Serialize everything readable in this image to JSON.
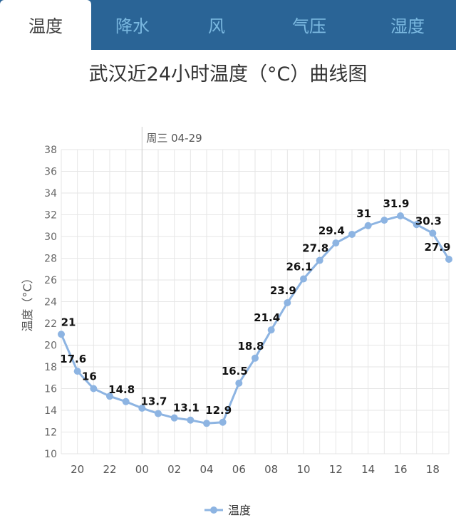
{
  "tabs": [
    {
      "label": "温度",
      "active": true
    },
    {
      "label": "降水"
    },
    {
      "label": "风"
    },
    {
      "label": "气压"
    },
    {
      "label": "湿度"
    }
  ],
  "chart_data": {
    "type": "line",
    "title": "武汉近24小时温度（°C）曲线图",
    "ylabel": "温度（°C）",
    "ylim": [
      10,
      38
    ],
    "yticks": [
      "10",
      "12",
      "14",
      "16",
      "18",
      "20",
      "22",
      "24",
      "26",
      "28",
      "30",
      "32",
      "34",
      "36",
      "38"
    ],
    "xticks": [
      "20",
      "22",
      "00",
      "02",
      "04",
      "06",
      "08",
      "10",
      "12",
      "14",
      "16",
      "18"
    ],
    "date_marker": {
      "at": "00",
      "label": "周三 04-29"
    },
    "x": [
      "19",
      "20",
      "21",
      "22",
      "23",
      "00",
      "01",
      "02",
      "03",
      "04",
      "05",
      "06",
      "07",
      "08",
      "09",
      "10",
      "11",
      "12",
      "13",
      "14",
      "15",
      "16",
      "17",
      "18",
      "19"
    ],
    "series": [
      {
        "name": "温度",
        "color": "#8db4e2",
        "values": [
          21,
          17.6,
          16,
          15.3,
          14.8,
          14.2,
          13.7,
          13.3,
          13.1,
          12.8,
          12.9,
          16.5,
          18.8,
          21.4,
          23.9,
          26.1,
          27.8,
          29.4,
          30.2,
          31,
          31.5,
          31.9,
          31.1,
          30.3,
          27.9
        ],
        "labels": [
          "21",
          "17.6",
          "16",
          "",
          "14.8",
          "",
          "13.7",
          "",
          "13.1",
          "",
          "12.9",
          "16.5",
          "18.8",
          "21.4",
          "23.9",
          "26.1",
          "27.8",
          "29.4",
          "",
          "31",
          "",
          "31.9",
          "",
          "30.3",
          "27.9"
        ]
      }
    ],
    "grid": true,
    "legend": "bottom"
  }
}
